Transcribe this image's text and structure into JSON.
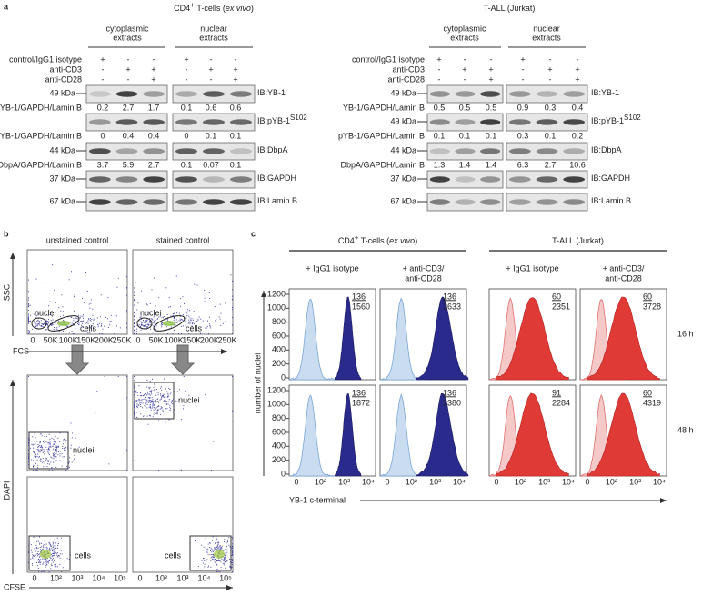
{
  "panel_a": {
    "letter": "a",
    "groups": [
      {
        "title": {
          "main": "CD4",
          "sup": "+",
          "rest": " T-cells (",
          "italic": "ex vivo",
          "end": ")"
        },
        "extracts": [
          [
            "cytoplasmic",
            "extracts"
          ],
          [
            "nuclear",
            "extracts"
          ]
        ],
        "conditions": [
          {
            "label": "control/IgG1 isotype",
            "signs": [
              "+",
              "-",
              "-",
              "+",
              "-",
              "-"
            ]
          },
          {
            "label": "anti-CD3",
            "signs": [
              "-",
              "+",
              "+",
              "-",
              "+",
              "+"
            ]
          },
          {
            "label": "anti-CD28",
            "signs": [
              "-",
              "-",
              "+",
              "-",
              "-",
              "+"
            ]
          }
        ],
        "blots": [
          {
            "kda": "49 kDa",
            "ib": "IB:YB-1",
            "quant": {
              "label": "YB-1/GAPDH/Lamin B",
              "values": [
                0.2,
                2.7,
                1.7,
                0.1,
                0.6,
                0.6
              ]
            }
          },
          {
            "ib": "IB:pYB-1",
            "ib_sup": "S102",
            "quant": {
              "label": "pYB-1/GAPDH/Lamin B",
              "values": [
                0,
                0.4,
                0.4,
                0,
                0.1,
                0.1
              ]
            }
          },
          {
            "kda": "44 kDa",
            "ib": "IB:DbpA",
            "quant": {
              "label": "DbpA/GAPDH/Lamin B",
              "values": [
                3.7,
                5.9,
                2.7,
                0.1,
                0.07,
                0.1
              ]
            }
          },
          {
            "kda": "37 kDa",
            "ib": "IB:GAPDH"
          },
          {
            "kda": "67 kDa",
            "ib": "IB:Lamin B"
          }
        ]
      },
      {
        "title": {
          "main": "T-ALL (Jurkat)"
        },
        "extracts": [
          [
            "cytoplasmic",
            "extracts"
          ],
          [
            "nuclear",
            "extracts"
          ]
        ],
        "conditions": [
          {
            "label": "control/IgG1 isotype",
            "signs": [
              "+",
              "-",
              "-",
              "+",
              "-",
              "-"
            ]
          },
          {
            "label": "anti-CD3",
            "signs": [
              "-",
              "+",
              "+",
              "-",
              "+",
              "+"
            ]
          },
          {
            "label": "anti-CD28",
            "signs": [
              "-",
              "-",
              "+",
              "-",
              "-",
              "+"
            ]
          }
        ],
        "blots": [
          {
            "kda": "49 kDa",
            "ib": "IB:YB-1",
            "quant": {
              "label": "YB-1/GAPDH/Lamin B",
              "values": [
                0.5,
                0.5,
                0.5,
                0.9,
                0.3,
                0.4
              ]
            }
          },
          {
            "kda": "49 kDa",
            "ib": "IB:pYB-1",
            "ib_sup": "S102",
            "quant": {
              "label": "pYB-1/GAPDH/Lamin B",
              "values": [
                0.1,
                0.1,
                0.1,
                0.3,
                0.1,
                0.2
              ]
            }
          },
          {
            "kda": "44 kDa",
            "ib": "IB:DbpA",
            "quant": {
              "label": "DbpA/GAPDH/Lamin B",
              "values": [
                1.3,
                1.4,
                1.4,
                6.3,
                2.7,
                10.6
              ]
            }
          },
          {
            "kda": "37 kDa",
            "ib": "IB:GAPDH"
          },
          {
            "kda": "67 kDa",
            "ib": "IB:Lamin B"
          }
        ]
      }
    ]
  },
  "panel_b": {
    "letter": "b",
    "columns": [
      "unstained control",
      "stained control"
    ],
    "ssc": "SSC",
    "fcs": "FCS",
    "dapi": "DAPI",
    "cfse": "CFSE",
    "nuclei": "nuclei",
    "cells": "cells",
    "fcs_ticks": [
      "0",
      "50K",
      "100K",
      "150K",
      "200K",
      "250K"
    ],
    "cfse_ticks": [
      "0",
      "10²",
      "10³",
      "10⁴",
      "10⁵"
    ]
  },
  "panel_c": {
    "letter": "c",
    "groups": [
      {
        "title": {
          "main": "CD4",
          "sup": "+",
          "rest": " T-cells (",
          "italic": "ex vivo",
          "end": ")"
        }
      },
      {
        "title": {
          "main": "T-ALL (Jurkat)"
        }
      }
    ],
    "columns": [
      [
        "+ IgG1 isotype"
      ],
      [
        "+ anti-CD3/",
        "anti-CD28"
      ],
      [
        "+ IgG1 isotype"
      ],
      [
        "+ anti-CD3/",
        "anti-CD28"
      ]
    ],
    "rows": [
      "16 h",
      "48 h"
    ],
    "boxes": [
      [
        [
          136,
          1560
        ],
        [
          136,
          3633
        ],
        [
          60,
          2351
        ],
        [
          60,
          3728
        ]
      ],
      [
        [
          136,
          1872
        ],
        [
          136,
          3380
        ],
        [
          91,
          2284
        ],
        [
          60,
          4319
        ]
      ]
    ],
    "y_label": "number of nuclei",
    "x_label": "YB-1 c-terminal",
    "yticks": [
      0,
      200,
      400,
      600,
      800,
      1000,
      1200
    ],
    "xticks": [
      "0",
      "10²",
      "10³",
      "10⁴"
    ]
  }
}
